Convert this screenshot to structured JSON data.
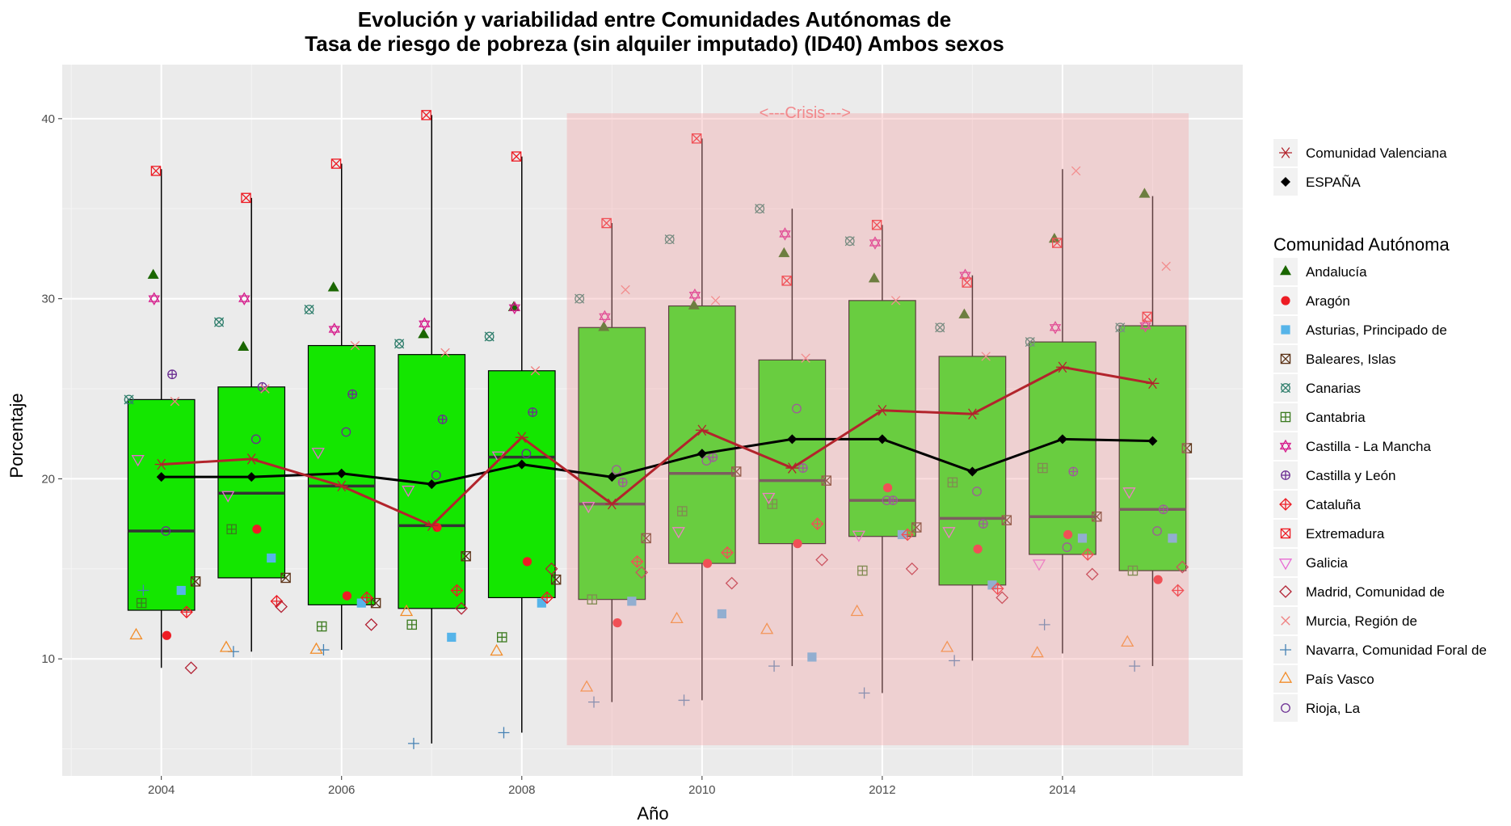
{
  "chart_data": {
    "type": "boxplot",
    "title_line1": "Evolución y variabilidad entre Comunidades Autónomas de",
    "title_line2": "Tasa de riesgo de pobreza (sin alquiler imputado) (ID40) Ambos sexos",
    "xlabel": "Año",
    "ylabel": "Porcentaje",
    "x_ticks": [
      2004,
      2006,
      2008,
      2010,
      2012,
      2014
    ],
    "y_ticks": [
      10,
      20,
      30,
      40
    ],
    "xlim": [
      2002.9,
      2016.0
    ],
    "ylim": [
      3.5,
      43.0
    ],
    "panel_background": "#ebebeb",
    "gridlines": true,
    "box_fill": "#14e600",
    "crisis": {
      "label": "<---Crisis--->",
      "x_start": 2008.5,
      "x_end": 2015.4,
      "y_min": 5.2,
      "y_max": 40.3,
      "color": "#f4a6a8"
    },
    "years": [
      2004,
      2005,
      2006,
      2007,
      2008,
      2009,
      2010,
      2011,
      2012,
      2013,
      2014,
      2015
    ],
    "boxes": [
      {
        "year": 2004,
        "min": 9.5,
        "q1": 12.7,
        "median": 17.1,
        "q3": 24.4,
        "max": 37.2
      },
      {
        "year": 2005,
        "min": 10.4,
        "q1": 14.5,
        "median": 19.2,
        "q3": 25.1,
        "max": 35.6
      },
      {
        "year": 2006,
        "min": 10.5,
        "q1": 13.0,
        "median": 19.6,
        "q3": 27.4,
        "max": 37.5
      },
      {
        "year": 2007,
        "min": 5.3,
        "q1": 12.8,
        "median": 17.4,
        "q3": 26.9,
        "max": 40.2
      },
      {
        "year": 2008,
        "min": 5.9,
        "q1": 13.4,
        "median": 21.2,
        "q3": 26.0,
        "max": 37.9
      },
      {
        "year": 2009,
        "min": 7.6,
        "q1": 13.3,
        "median": 18.6,
        "q3": 28.4,
        "max": 34.2
      },
      {
        "year": 2010,
        "min": 7.7,
        "q1": 15.3,
        "median": 20.3,
        "q3": 29.6,
        "max": 38.9
      },
      {
        "year": 2011,
        "min": 9.6,
        "q1": 16.4,
        "median": 19.9,
        "q3": 26.6,
        "max": 35.0
      },
      {
        "year": 2012,
        "min": 8.1,
        "q1": 16.8,
        "median": 18.8,
        "q3": 29.9,
        "max": 34.1
      },
      {
        "year": 2013,
        "min": 9.9,
        "q1": 14.1,
        "median": 17.8,
        "q3": 26.8,
        "max": 31.3
      },
      {
        "year": 2014,
        "min": 10.3,
        "q1": 15.8,
        "median": 17.9,
        "q3": 27.6,
        "max": 37.2
      },
      {
        "year": 2015,
        "min": 9.6,
        "q1": 14.9,
        "median": 18.3,
        "q3": 28.5,
        "max": 35.7
      }
    ],
    "lines": [
      {
        "name": "Comunidad Valenciana",
        "color": "#b2242c",
        "shape": "asterisk",
        "values": [
          20.8,
          21.1,
          19.6,
          17.4,
          22.3,
          18.6,
          22.7,
          20.6,
          23.8,
          23.6,
          26.2,
          25.3
        ]
      },
      {
        "name": "ESPAÑA",
        "color": "#000000",
        "shape": "diamond-filled",
        "values": [
          20.1,
          20.1,
          20.3,
          19.7,
          20.8,
          20.1,
          21.4,
          22.2,
          22.2,
          20.4,
          22.2,
          22.1
        ]
      }
    ],
    "legend_title": "Comunidad Autónoma",
    "regions": [
      {
        "name": "Andalucía",
        "color": "#1a6600",
        "shape": "triangle-filled",
        "offset": -0.09,
        "values": [
          31.3,
          27.3,
          30.6,
          28.0,
          29.5,
          28.4,
          29.6,
          32.5,
          31.1,
          29.1,
          33.3,
          35.8
        ]
      },
      {
        "name": "Aragón",
        "color": "#ed1c24",
        "shape": "circle-filled",
        "offset": 0.06,
        "values": [
          11.3,
          17.2,
          13.5,
          17.3,
          15.4,
          12.0,
          15.3,
          16.4,
          19.5,
          16.1,
          16.9,
          14.4
        ]
      },
      {
        "name": "Asturias, Principado de",
        "color": "#56b4e9",
        "shape": "square-filled",
        "offset": 0.22,
        "values": [
          13.8,
          15.6,
          13.1,
          11.2,
          13.1,
          13.2,
          12.5,
          10.1,
          16.9,
          14.1,
          16.7,
          16.7
        ]
      },
      {
        "name": "Baleares, Islas",
        "color": "#5c3317",
        "shape": "square-x",
        "offset": 0.38,
        "values": [
          14.3,
          14.5,
          13.1,
          15.7,
          14.4,
          16.7,
          20.4,
          19.9,
          17.3,
          17.7,
          17.9,
          21.7
        ]
      },
      {
        "name": "Canarias",
        "color": "#2e7d6b",
        "shape": "square-cross-x",
        "offset": -0.36,
        "values": [
          24.4,
          28.7,
          29.4,
          27.5,
          27.9,
          30.0,
          33.3,
          35.0,
          33.2,
          28.4,
          27.6,
          28.4
        ]
      },
      {
        "name": "Cantabria",
        "color": "#3b7a1e",
        "shape": "square-plus",
        "offset": -0.22,
        "values": [
          13.1,
          17.2,
          11.8,
          11.9,
          11.2,
          13.3,
          18.2,
          18.6,
          14.9,
          19.8,
          20.6,
          14.9
        ]
      },
      {
        "name": "Castilla - La Mancha",
        "color": "#d61c8c",
        "shape": "star-of-david",
        "offset": -0.08,
        "values": [
          30.0,
          30.0,
          28.3,
          28.6,
          29.5,
          29.0,
          30.2,
          33.6,
          33.1,
          31.3,
          28.4,
          28.5
        ]
      },
      {
        "name": "Castilla y León",
        "color": "#6a2c91",
        "shape": "circle-plus",
        "offset": 0.12,
        "values": [
          25.8,
          25.1,
          24.7,
          23.3,
          23.7,
          19.8,
          21.2,
          20.6,
          18.8,
          17.5,
          20.4,
          18.3
        ]
      },
      {
        "name": "Cataluña",
        "color": "#ed1c24",
        "shape": "diamond-plus",
        "offset": 0.28,
        "values": [
          12.6,
          13.2,
          13.4,
          13.8,
          13.4,
          15.4,
          15.9,
          17.5,
          16.9,
          13.9,
          15.8,
          13.8
        ]
      },
      {
        "name": "Extremadura",
        "color": "#ed1c24",
        "shape": "square-x",
        "offset": -0.06,
        "values": [
          37.1,
          35.6,
          37.5,
          40.2,
          37.9,
          34.2,
          38.9,
          31.0,
          34.1,
          30.9,
          33.1,
          29.0
        ]
      },
      {
        "name": "Galicia",
        "color": "#e86ad3",
        "shape": "triangle-down",
        "offset": -0.26,
        "values": [
          21.1,
          19.1,
          21.5,
          19.4,
          21.3,
          18.5,
          17.1,
          19.0,
          16.9,
          17.1,
          15.3,
          19.3
        ]
      },
      {
        "name": "Madrid, Comunidad de",
        "color": "#b22234",
        "shape": "diamond-open",
        "offset": 0.33,
        "values": [
          9.5,
          12.9,
          11.9,
          12.8,
          15.0,
          14.8,
          14.2,
          15.5,
          15.0,
          13.4,
          14.7,
          15.1
        ]
      },
      {
        "name": "Murcia, Región de",
        "color": "#f08080",
        "shape": "x",
        "offset": 0.15,
        "values": [
          24.3,
          25.0,
          27.4,
          27.0,
          26.0,
          30.5,
          29.9,
          26.7,
          29.9,
          26.8,
          37.1,
          31.8
        ]
      },
      {
        "name": "Navarra, Comunidad Foral de",
        "color": "#4682b4",
        "shape": "plus",
        "offset": -0.2,
        "values": [
          13.8,
          10.4,
          10.5,
          5.3,
          5.9,
          7.6,
          7.7,
          9.6,
          8.1,
          9.9,
          11.9,
          9.6
        ]
      },
      {
        "name": "País Vasco",
        "color": "#f28c28",
        "shape": "triangle-open",
        "offset": -0.28,
        "values": [
          11.3,
          10.6,
          10.5,
          12.6,
          10.4,
          8.4,
          12.2,
          11.6,
          12.6,
          10.6,
          10.3,
          10.9
        ]
      },
      {
        "name": "Rioja, La",
        "color": "#6a2c91",
        "shape": "circle-open",
        "offset": 0.05,
        "values": [
          17.1,
          22.2,
          22.6,
          20.2,
          21.4,
          20.5,
          21.0,
          23.9,
          18.8,
          19.3,
          16.2,
          17.1
        ]
      }
    ]
  }
}
